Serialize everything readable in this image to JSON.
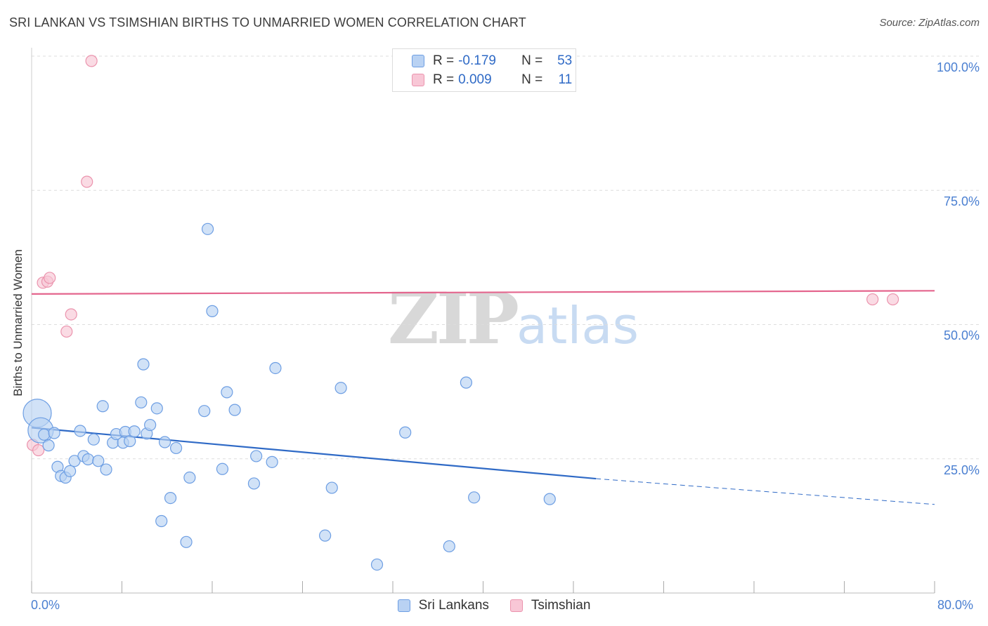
{
  "title": "SRI LANKAN VS TSIMSHIAN BIRTHS TO UNMARRIED WOMEN CORRELATION CHART",
  "source": "Source: ZipAtlas.com",
  "watermark": {
    "zip": "ZIP",
    "atlas": "atlas"
  },
  "legend": {
    "r_label": "R =",
    "n_label": "N =",
    "rows": [
      {
        "name": "Sri Lankans",
        "r": "-0.179",
        "n": "53"
      },
      {
        "name": "Tsimshian",
        "r": "0.009",
        "n": "11"
      }
    ]
  },
  "colors": {
    "sri_fill": "#b9d2f3",
    "sri_stroke": "#6d9ee3",
    "sri_line": "#2f6ac6",
    "tsi_fill": "#f8c7d6",
    "tsi_stroke": "#eb93ad",
    "tsi_line": "#e4668e",
    "grid": "#dddddd",
    "tick_text": "#4a7fd1"
  },
  "chart_data": {
    "type": "scatter",
    "title": "SRI LANKAN VS TSIMSHIAN BIRTHS TO UNMARRIED WOMEN CORRELATION CHART",
    "xlabel": "",
    "ylabel": "Births to Unmarried Women",
    "xlim": [
      0,
      80
    ],
    "ylim": [
      0,
      100
    ],
    "x_tick_labels": [
      "0.0%",
      "80.0%"
    ],
    "y_tick_labels": [
      "100.0%",
      "75.0%",
      "50.0%",
      "25.0%"
    ],
    "y_ticks": [
      100,
      75,
      50,
      25
    ],
    "legend_position": "bottom",
    "series": [
      {
        "name": "Sri Lankans",
        "points": [
          {
            "x": 0.5,
            "y": 33.5,
            "s": 3
          },
          {
            "x": 0.8,
            "y": 30.3,
            "s": 2
          },
          {
            "x": 1.1,
            "y": 29.5
          },
          {
            "x": 1.5,
            "y": 27.5
          },
          {
            "x": 2.0,
            "y": 29.8
          },
          {
            "x": 2.3,
            "y": 23.5
          },
          {
            "x": 2.6,
            "y": 21.8
          },
          {
            "x": 3.0,
            "y": 21.5
          },
          {
            "x": 3.4,
            "y": 22.7
          },
          {
            "x": 3.8,
            "y": 24.6
          },
          {
            "x": 4.3,
            "y": 30.2
          },
          {
            "x": 4.6,
            "y": 25.5
          },
          {
            "x": 5.0,
            "y": 24.9
          },
          {
            "x": 5.5,
            "y": 28.6
          },
          {
            "x": 5.9,
            "y": 24.6
          },
          {
            "x": 6.3,
            "y": 34.8
          },
          {
            "x": 6.6,
            "y": 23.0
          },
          {
            "x": 7.2,
            "y": 28.0
          },
          {
            "x": 7.5,
            "y": 29.6
          },
          {
            "x": 8.1,
            "y": 28.0
          },
          {
            "x": 8.3,
            "y": 30.0
          },
          {
            "x": 8.7,
            "y": 28.3
          },
          {
            "x": 9.1,
            "y": 30.1
          },
          {
            "x": 9.7,
            "y": 35.5
          },
          {
            "x": 9.9,
            "y": 42.6
          },
          {
            "x": 10.2,
            "y": 29.7
          },
          {
            "x": 10.5,
            "y": 31.3
          },
          {
            "x": 11.1,
            "y": 34.4
          },
          {
            "x": 11.5,
            "y": 13.4
          },
          {
            "x": 11.8,
            "y": 28.1
          },
          {
            "x": 12.3,
            "y": 17.7
          },
          {
            "x": 12.8,
            "y": 27.0
          },
          {
            "x": 13.7,
            "y": 9.5
          },
          {
            "x": 14.0,
            "y": 21.5
          },
          {
            "x": 15.3,
            "y": 33.9
          },
          {
            "x": 15.6,
            "y": 67.8
          },
          {
            "x": 16.0,
            "y": 52.5
          },
          {
            "x": 16.9,
            "y": 23.1
          },
          {
            "x": 17.3,
            "y": 37.4
          },
          {
            "x": 18.0,
            "y": 34.1
          },
          {
            "x": 19.7,
            "y": 20.4
          },
          {
            "x": 19.9,
            "y": 25.5
          },
          {
            "x": 21.3,
            "y": 24.4
          },
          {
            "x": 21.6,
            "y": 41.9
          },
          {
            "x": 26.0,
            "y": 10.7
          },
          {
            "x": 26.6,
            "y": 19.6
          },
          {
            "x": 27.4,
            "y": 38.2
          },
          {
            "x": 30.6,
            "y": 5.3
          },
          {
            "x": 33.1,
            "y": 29.9
          },
          {
            "x": 37.0,
            "y": 8.7
          },
          {
            "x": 38.5,
            "y": 39.2
          },
          {
            "x": 39.2,
            "y": 17.8
          },
          {
            "x": 45.9,
            "y": 17.5
          }
        ],
        "trend": {
          "x_start": 0,
          "y_start": 30.8,
          "x_solid_end": 50,
          "y_solid_end": 21.3,
          "x_dash_end": 80,
          "y_dash_end": 16.5
        }
      },
      {
        "name": "Tsimshian",
        "points": [
          {
            "x": 0.1,
            "y": 27.6
          },
          {
            "x": 0.6,
            "y": 26.6
          },
          {
            "x": 1.0,
            "y": 57.8
          },
          {
            "x": 1.4,
            "y": 58.0
          },
          {
            "x": 1.6,
            "y": 58.7
          },
          {
            "x": 3.1,
            "y": 48.7
          },
          {
            "x": 3.5,
            "y": 51.9
          },
          {
            "x": 4.9,
            "y": 76.6
          },
          {
            "x": 5.3,
            "y": 99.1
          },
          {
            "x": 74.5,
            "y": 54.7
          },
          {
            "x": 76.3,
            "y": 54.7
          }
        ],
        "trend": {
          "x_start": 0,
          "y_start": 55.7,
          "x_end": 80,
          "y_end": 56.3
        }
      }
    ]
  }
}
